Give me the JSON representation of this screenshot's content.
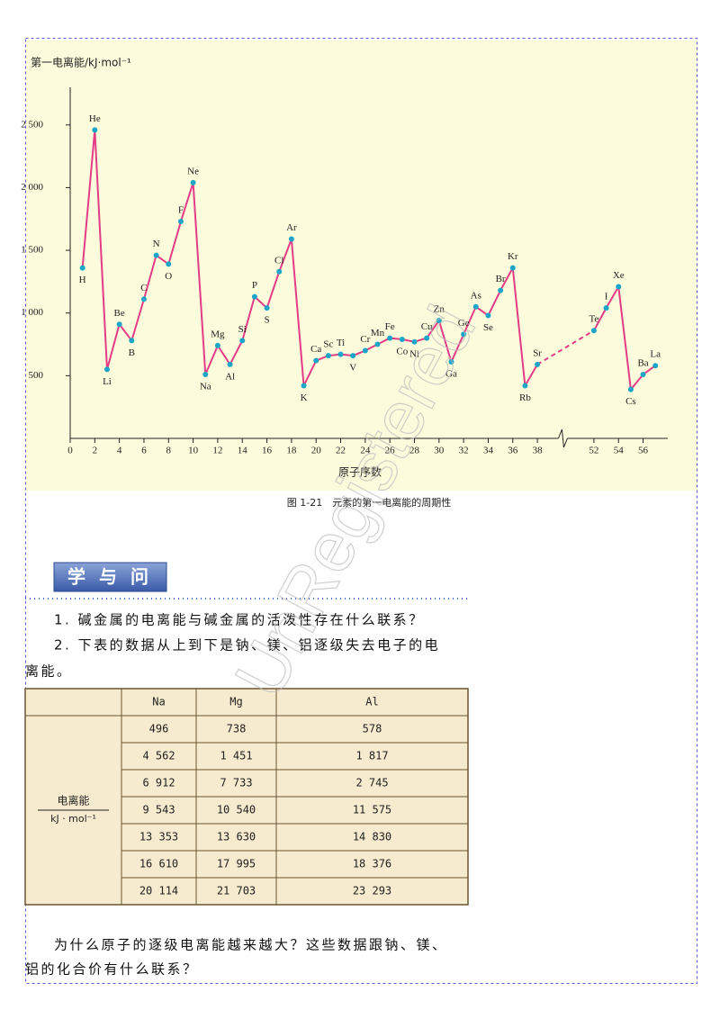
{
  "chart_data": {
    "type": "line",
    "y_axis_label": "第一电离能/kJ·mol⁻¹",
    "x_axis_label": "原子序数",
    "ylim": [
      0,
      2800
    ],
    "yticks": [
      500,
      {
        "value": 1000,
        "label": "1 000"
      },
      {
        "value": 1500,
        "label": "1 500"
      },
      {
        "value": 2000,
        "label": "2 000"
      },
      {
        "value": 2500,
        "label": "2 500"
      }
    ],
    "xlim": [
      0,
      58
    ],
    "xbreak": [
      40,
      49.4
    ],
    "xticks": [
      0,
      2,
      4,
      6,
      8,
      10,
      12,
      14,
      16,
      18,
      20,
      22,
      24,
      26,
      28,
      30,
      32,
      34,
      36,
      38,
      52,
      54,
      56
    ],
    "series": [
      {
        "color": "#e23d86",
        "point_color": "#1ba6c8",
        "x": [
          1,
          2,
          3,
          4,
          5,
          6,
          7,
          8,
          9,
          10,
          11,
          12,
          13,
          14,
          15,
          16,
          17,
          18,
          19,
          20,
          21,
          22,
          23,
          24,
          25,
          26,
          27,
          28,
          29,
          30,
          31,
          32,
          33,
          34,
          35,
          36,
          37,
          38,
          52,
          53,
          54,
          55,
          56,
          57
        ],
        "values": [
          1360,
          2460,
          550,
          910,
          780,
          1110,
          1460,
          1390,
          1730,
          2040,
          510,
          740,
          590,
          780,
          1130,
          1040,
          1330,
          1590,
          420,
          620,
          660,
          670,
          660,
          700,
          750,
          800,
          790,
          770,
          800,
          940,
          610,
          830,
          1050,
          980,
          1180,
          1360,
          420,
          590,
          860,
          1040,
          1210,
          390,
          510,
          580
        ],
        "labels": [
          "H",
          "He",
          "Li",
          "Be",
          "B",
          "C",
          "N",
          "O",
          "F",
          "Ne",
          "Na",
          "Mg",
          "Al",
          "Si",
          "P",
          "S",
          "Cl",
          "Ar",
          "K",
          "Ca",
          "Sc",
          "Ti",
          "V",
          "Cr",
          "Mn",
          "Fe",
          "Co",
          "Ni",
          "Cu",
          "Zn",
          "Ga",
          "Ge",
          "As",
          "Se",
          "Br",
          "Kr",
          "Rb",
          "Sr",
          "Te",
          "I",
          "Xe",
          "Cs",
          "Ba",
          "La"
        ]
      }
    ]
  },
  "caption": "图 1-21　元素的第一电离能的周期性",
  "section_title": "学 与 问",
  "question_1": "1. 碱金属的电离能与碱金属的活泼性存在什么联系？",
  "question_2": [
    "2. 下表的数据从上到下是钠、镁、铝逐级失去电子的电",
    "离能。"
  ],
  "table": {
    "header": [
      "Na",
      "Mg",
      "Al"
    ],
    "row_label": [
      "电离能",
      "kJ · mol⁻¹"
    ],
    "rows": [
      [
        "496",
        "738",
        "578"
      ],
      [
        "4 562",
        "1 451",
        "1 817"
      ],
      [
        "6 912",
        "7 733",
        "2 745"
      ],
      [
        "9 543",
        "10 540",
        "11 575"
      ],
      [
        "13 353",
        "13 630",
        "14 830"
      ],
      [
        "16 610",
        "17 995",
        "18 376"
      ],
      [
        "20 114",
        "21 703",
        "23 293"
      ]
    ]
  },
  "closing_question": [
    "为什么原子的逐级电离能越来越大？这些数据跟钠、镁、",
    "铝的化合价有什么联系？"
  ],
  "watermark": "UnRegistered"
}
